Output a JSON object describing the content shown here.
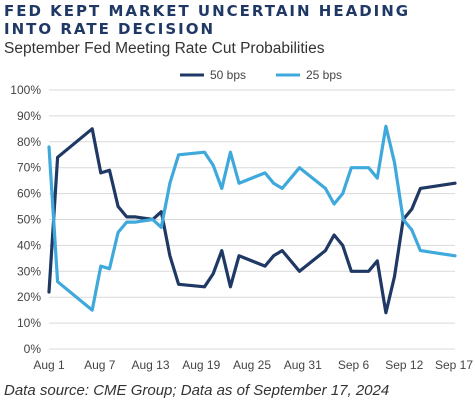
{
  "title": "FED KEPT MARKET UNCERTAIN HEADING INTO RATE DECISION",
  "subtitle": "September Fed Meeting Rate Cut Probabilities",
  "source": "Data source: CME Group; Data as of September 17, 2024",
  "chart_data": {
    "type": "line",
    "title": "FED KEPT MARKET UNCERTAIN HEADING INTO RATE DECISION",
    "subtitle": "September Fed Meeting Rate Cut Probabilities",
    "xlabel": "",
    "ylabel": "",
    "x_ticks": [
      "Aug 1",
      "Aug 7",
      "Aug 13",
      "Aug 19",
      "Aug 25",
      "Aug 31",
      "Sep 6",
      "Sep 12",
      "Sep 17"
    ],
    "y_ticks": [
      "0%",
      "10%",
      "20%",
      "30%",
      "40%",
      "50%",
      "60%",
      "70%",
      "80%",
      "90%",
      "100%"
    ],
    "ylim": [
      0,
      100
    ],
    "xlim": [
      0,
      47
    ],
    "x_unit": "days since Aug 1",
    "grid": "horizontal",
    "legend_position": "top",
    "series": [
      {
        "name": "50 bps",
        "color": "#1f3864",
        "x": [
          0,
          1,
          5,
          6,
          7,
          8,
          9,
          10,
          12,
          13,
          14,
          15,
          18,
          19,
          20,
          21,
          22,
          25,
          26,
          27,
          29,
          32,
          33,
          34,
          35,
          37,
          38,
          39,
          40,
          41,
          42,
          43,
          47
        ],
        "y": [
          22,
          74,
          85,
          68,
          69,
          55,
          51,
          51,
          50,
          53,
          36,
          25,
          24,
          29,
          38,
          24,
          36,
          32,
          36,
          38,
          30,
          38,
          44,
          40,
          30,
          30,
          34,
          14,
          28,
          50,
          54,
          62,
          64
        ]
      },
      {
        "name": "25 bps",
        "color": "#3fa9dc",
        "x": [
          0,
          1,
          5,
          6,
          7,
          8,
          9,
          10,
          12,
          13,
          14,
          15,
          18,
          19,
          20,
          21,
          22,
          25,
          26,
          27,
          29,
          32,
          33,
          34,
          35,
          37,
          38,
          39,
          40,
          41,
          42,
          43,
          47
        ],
        "y": [
          78,
          26,
          15,
          32,
          31,
          45,
          49,
          49,
          50,
          47,
          64,
          75,
          76,
          71,
          62,
          76,
          64,
          68,
          64,
          62,
          70,
          62,
          56,
          60,
          70,
          70,
          66,
          86,
          72,
          50,
          46,
          38,
          36
        ]
      }
    ]
  }
}
